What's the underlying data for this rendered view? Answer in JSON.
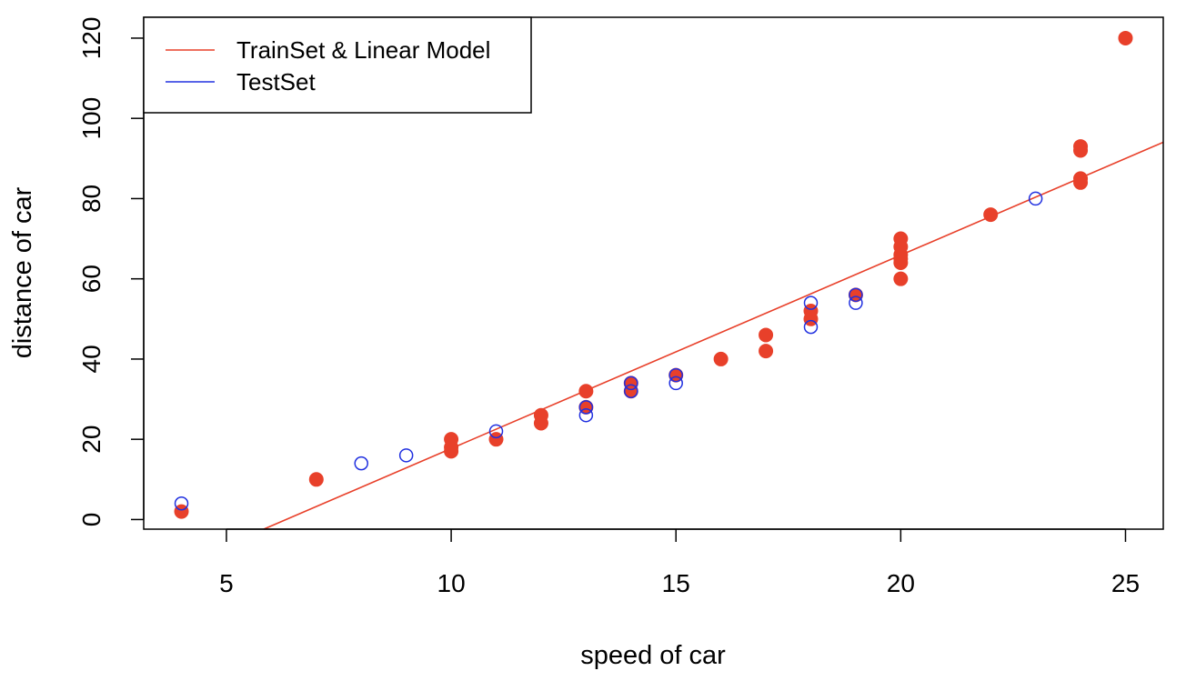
{
  "chart_data": {
    "type": "scatter",
    "title": "",
    "xlabel": "speed of car",
    "ylabel": "distance of car",
    "xlim": [
      3.16,
      25.84
    ],
    "ylim": [
      -2.4,
      125.2
    ],
    "x_ticks": [
      5,
      10,
      15,
      20,
      25
    ],
    "y_ticks": [
      0,
      20,
      40,
      60,
      80,
      100,
      120
    ],
    "grid": false,
    "legend": {
      "position": "top-left",
      "entries": [
        {
          "label": "TrainSet & Linear Model",
          "color": "#e8402a"
        },
        {
          "label": "TestSet",
          "color": "#2030e0"
        }
      ]
    },
    "series": [
      {
        "name": "TrainSet & Linear Model",
        "marker": "filled-circle",
        "color": "#e8402a",
        "x": [
          4,
          7,
          10,
          10,
          10,
          11,
          12,
          12,
          13,
          13,
          14,
          14,
          15,
          16,
          17,
          17,
          18,
          18,
          19,
          20,
          20,
          20,
          20,
          20,
          20,
          22,
          24,
          24,
          24,
          24,
          25
        ],
        "y": [
          2,
          10,
          17,
          18,
          20,
          20,
          24,
          26,
          28,
          32,
          32,
          34,
          36,
          40,
          42,
          46,
          50,
          52,
          56,
          60,
          64,
          66,
          68,
          70,
          65,
          76,
          84,
          85,
          92,
          93,
          120
        ]
      },
      {
        "name": "TestSet",
        "marker": "open-circle",
        "color": "#2030e0",
        "x": [
          4,
          8,
          9,
          11,
          13,
          13,
          14,
          14,
          15,
          15,
          18,
          18,
          19,
          19,
          23
        ],
        "y": [
          4,
          14,
          16,
          22,
          26,
          28,
          32,
          34,
          34,
          36,
          48,
          54,
          54,
          56,
          80
        ]
      }
    ],
    "fit_line": {
      "name": "Linear Model",
      "color": "#e8402a",
      "intercept": -30.5,
      "slope": 4.82
    }
  }
}
